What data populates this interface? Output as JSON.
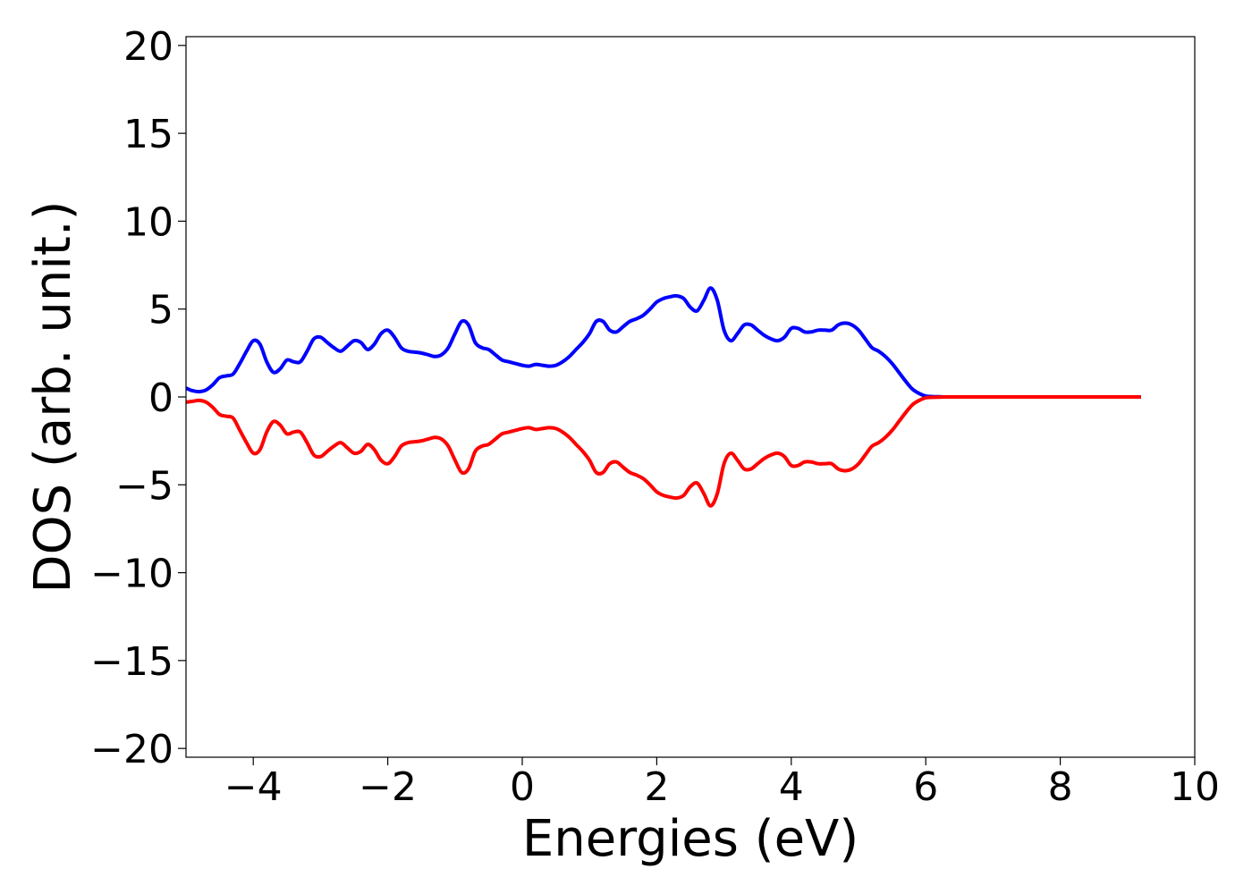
{
  "chart_data": {
    "type": "line",
    "xlabel": "Energies (eV)",
    "ylabel": "DOS (arb. unit.)",
    "xlim": [
      -5,
      10
    ],
    "ylim": [
      -20.5,
      20.5
    ],
    "xticks": [
      -4,
      -2,
      0,
      2,
      4,
      6,
      8,
      10
    ],
    "xtick_labels": [
      "−4",
      "−2",
      "0",
      "2",
      "4",
      "6",
      "8",
      "10"
    ],
    "yticks": [
      20,
      15,
      10,
      5,
      0,
      -5,
      -10,
      -15,
      -20
    ],
    "ytick_labels": [
      "20",
      "15",
      "10",
      "5",
      "0",
      "−5",
      "−10",
      "−15",
      "−20"
    ],
    "grid": false,
    "series": [
      {
        "color": "#0000ff",
        "x": [
          -5.0,
          -4.9,
          -4.8,
          -4.7,
          -4.6,
          -4.5,
          -4.4,
          -4.3,
          -4.2,
          -4.1,
          -4.0,
          -3.9,
          -3.8,
          -3.7,
          -3.6,
          -3.5,
          -3.4,
          -3.3,
          -3.2,
          -3.1,
          -3.0,
          -2.9,
          -2.8,
          -2.7,
          -2.6,
          -2.5,
          -2.4,
          -2.3,
          -2.2,
          -2.1,
          -2.0,
          -1.9,
          -1.8,
          -1.7,
          -1.6,
          -1.5,
          -1.4,
          -1.3,
          -1.2,
          -1.1,
          -1.0,
          -0.9,
          -0.8,
          -0.7,
          -0.6,
          -0.5,
          -0.4,
          -0.3,
          -0.2,
          -0.1,
          0.0,
          0.1,
          0.2,
          0.3,
          0.4,
          0.5,
          0.6,
          0.7,
          0.8,
          0.9,
          1.0,
          1.1,
          1.2,
          1.3,
          1.4,
          1.5,
          1.6,
          1.7,
          1.8,
          1.9,
          2.0,
          2.1,
          2.2,
          2.3,
          2.4,
          2.5,
          2.6,
          2.7,
          2.8,
          2.9,
          3.0,
          3.1,
          3.2,
          3.3,
          3.4,
          3.5,
          3.6,
          3.7,
          3.8,
          3.9,
          4.0,
          4.1,
          4.2,
          4.3,
          4.4,
          4.5,
          4.6,
          4.7,
          4.8,
          4.9,
          5.0,
          5.1,
          5.2,
          5.3,
          5.4,
          5.5,
          5.6,
          5.7,
          5.8,
          5.9,
          6.0,
          6.1,
          6.2,
          6.3,
          6.4,
          6.5,
          6.6,
          6.7,
          6.8,
          6.9,
          7.0,
          7.1,
          7.2,
          7.3,
          7.4,
          7.5,
          7.6,
          7.7,
          7.8,
          8.0,
          8.5,
          9.0,
          9.2
        ],
        "y": [
          0.5,
          0.35,
          0.3,
          0.4,
          0.7,
          1.1,
          1.2,
          1.3,
          1.9,
          2.6,
          3.2,
          3.0,
          2.0,
          1.4,
          1.6,
          2.1,
          2.0,
          2.0,
          2.6,
          3.3,
          3.4,
          3.1,
          2.8,
          2.6,
          2.9,
          3.2,
          3.1,
          2.7,
          3.0,
          3.6,
          3.8,
          3.4,
          2.8,
          2.6,
          2.55,
          2.5,
          2.4,
          2.3,
          2.4,
          2.8,
          3.6,
          4.3,
          4.1,
          3.1,
          2.8,
          2.7,
          2.4,
          2.1,
          2.0,
          1.9,
          1.8,
          1.75,
          1.85,
          1.8,
          1.75,
          1.8,
          2.0,
          2.3,
          2.7,
          3.1,
          3.6,
          4.3,
          4.3,
          3.8,
          3.7,
          4.0,
          4.3,
          4.45,
          4.65,
          5.0,
          5.4,
          5.6,
          5.7,
          5.75,
          5.6,
          5.1,
          4.9,
          5.5,
          6.2,
          5.5,
          3.8,
          3.2,
          3.6,
          4.1,
          4.1,
          3.8,
          3.5,
          3.3,
          3.2,
          3.4,
          3.9,
          3.9,
          3.7,
          3.7,
          3.8,
          3.8,
          3.8,
          4.1,
          4.2,
          4.1,
          3.8,
          3.3,
          2.8,
          2.6,
          2.3,
          1.9,
          1.4,
          0.9,
          0.45,
          0.2,
          0.05,
          0.02,
          0.01,
          0.0,
          0.0,
          0.0,
          0.0,
          0.0,
          0.0,
          0.0,
          0.0,
          0.0,
          0.0,
          0.0,
          0.0,
          0.0,
          0.0,
          0.0,
          0.0,
          0.0,
          0.0,
          0.0,
          0.0
        ]
      },
      {
        "color": "#ff0000",
        "x": [
          -5.0,
          -4.9,
          -4.8,
          -4.7,
          -4.6,
          -4.5,
          -4.4,
          -4.3,
          -4.2,
          -4.1,
          -4.0,
          -3.9,
          -3.8,
          -3.7,
          -3.6,
          -3.5,
          -3.4,
          -3.3,
          -3.2,
          -3.1,
          -3.0,
          -2.9,
          -2.8,
          -2.7,
          -2.6,
          -2.5,
          -2.4,
          -2.3,
          -2.2,
          -2.1,
          -2.0,
          -1.9,
          -1.8,
          -1.7,
          -1.6,
          -1.5,
          -1.4,
          -1.3,
          -1.2,
          -1.1,
          -1.0,
          -0.9,
          -0.8,
          -0.7,
          -0.6,
          -0.5,
          -0.4,
          -0.3,
          -0.2,
          -0.1,
          0.0,
          0.1,
          0.2,
          0.3,
          0.4,
          0.5,
          0.6,
          0.7,
          0.8,
          0.9,
          1.0,
          1.1,
          1.2,
          1.3,
          1.4,
          1.5,
          1.6,
          1.7,
          1.8,
          1.9,
          2.0,
          2.1,
          2.2,
          2.3,
          2.4,
          2.5,
          2.6,
          2.7,
          2.8,
          2.9,
          3.0,
          3.1,
          3.2,
          3.3,
          3.4,
          3.5,
          3.6,
          3.7,
          3.8,
          3.9,
          4.0,
          4.1,
          4.2,
          4.3,
          4.4,
          4.5,
          4.6,
          4.7,
          4.8,
          4.9,
          5.0,
          5.1,
          5.2,
          5.3,
          5.4,
          5.5,
          5.6,
          5.7,
          5.8,
          5.9,
          6.0,
          6.1,
          6.2,
          6.3,
          6.4,
          6.5,
          6.6,
          6.7,
          6.8,
          6.9,
          7.0,
          7.1,
          7.2,
          7.3,
          7.4,
          7.5,
          7.6,
          7.7,
          7.8,
          8.0,
          8.5,
          9.0,
          9.2
        ],
        "y": [
          -0.3,
          -0.25,
          -0.2,
          -0.3,
          -0.6,
          -1.0,
          -1.1,
          -1.2,
          -1.9,
          -2.6,
          -3.2,
          -3.0,
          -2.0,
          -1.4,
          -1.6,
          -2.1,
          -2.0,
          -2.0,
          -2.6,
          -3.3,
          -3.4,
          -3.1,
          -2.8,
          -2.6,
          -2.9,
          -3.2,
          -3.1,
          -2.7,
          -3.0,
          -3.6,
          -3.8,
          -3.4,
          -2.8,
          -2.6,
          -2.55,
          -2.5,
          -2.4,
          -2.3,
          -2.4,
          -2.8,
          -3.6,
          -4.3,
          -4.1,
          -3.1,
          -2.8,
          -2.7,
          -2.4,
          -2.1,
          -2.0,
          -1.9,
          -1.8,
          -1.75,
          -1.85,
          -1.8,
          -1.75,
          -1.8,
          -2.0,
          -2.3,
          -2.7,
          -3.1,
          -3.6,
          -4.3,
          -4.3,
          -3.8,
          -3.7,
          -4.0,
          -4.3,
          -4.45,
          -4.65,
          -5.0,
          -5.4,
          -5.6,
          -5.7,
          -5.75,
          -5.6,
          -5.1,
          -4.9,
          -5.5,
          -6.2,
          -5.5,
          -3.8,
          -3.2,
          -3.6,
          -4.1,
          -4.1,
          -3.8,
          -3.5,
          -3.3,
          -3.2,
          -3.4,
          -3.9,
          -3.9,
          -3.7,
          -3.7,
          -3.8,
          -3.8,
          -3.8,
          -4.1,
          -4.2,
          -4.1,
          -3.8,
          -3.3,
          -2.8,
          -2.6,
          -2.3,
          -1.9,
          -1.4,
          -0.9,
          -0.45,
          -0.2,
          -0.05,
          -0.02,
          -0.01,
          0.0,
          0.0,
          0.0,
          0.0,
          0.0,
          0.0,
          0.0,
          0.0,
          0.0,
          0.0,
          0.0,
          0.0,
          0.0,
          0.0,
          0.0,
          0.0,
          0.0,
          0.0,
          0.0,
          0.0
        ]
      }
    ]
  }
}
